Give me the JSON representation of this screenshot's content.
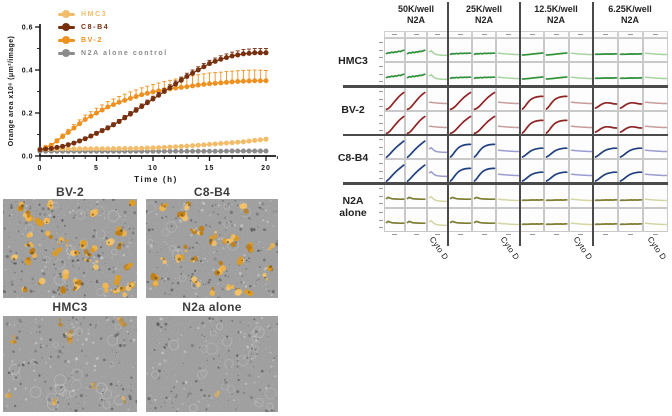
{
  "chart_data": [
    {
      "type": "line",
      "title": "",
      "xlabel": "Time (h)",
      "ylabel": "Orange area x10⁶ (μm²/image)",
      "xlim": [
        0,
        22
      ],
      "ylim": [
        0,
        0.6
      ],
      "xticks": [
        0,
        5,
        10,
        15,
        20
      ],
      "yticks": [
        0.0,
        0.2,
        0.4,
        0.6
      ],
      "grid": false,
      "legend_position": "top-left-inside",
      "x": [
        0,
        1,
        2,
        3,
        4,
        5,
        6,
        7,
        8,
        9,
        10,
        11,
        12,
        13,
        14,
        15,
        16,
        17,
        18,
        19,
        20
      ],
      "series": [
        {
          "name": "HMC3",
          "color": "#F2BD6A",
          "values": [
            0.03,
            0.032,
            0.033,
            0.033,
            0.034,
            0.034,
            0.034,
            0.035,
            0.035,
            0.036,
            0.038,
            0.04,
            0.043,
            0.046,
            0.05,
            0.054,
            0.058,
            0.062,
            0.066,
            0.072,
            0.078
          ],
          "err": [
            0.004,
            0.004,
            0.004,
            0.004,
            0.004,
            0.004,
            0.004,
            0.004,
            0.004,
            0.004,
            0.005,
            0.005,
            0.005,
            0.005,
            0.006,
            0.006,
            0.006,
            0.007,
            0.007,
            0.008,
            0.008
          ]
        },
        {
          "name": "C8-B4",
          "color": "#76300E",
          "values": [
            0.03,
            0.035,
            0.045,
            0.06,
            0.08,
            0.105,
            0.13,
            0.16,
            0.195,
            0.23,
            0.265,
            0.3,
            0.335,
            0.37,
            0.4,
            0.43,
            0.45,
            0.465,
            0.475,
            0.48,
            0.48
          ],
          "err": [
            0.004,
            0.005,
            0.006,
            0.007,
            0.008,
            0.009,
            0.01,
            0.01,
            0.012,
            0.012,
            0.013,
            0.013,
            0.014,
            0.015,
            0.015,
            0.015,
            0.016,
            0.018,
            0.02,
            0.02,
            0.02
          ]
        },
        {
          "name": "BV-2",
          "color": "#EF9120",
          "values": [
            0.03,
            0.05,
            0.09,
            0.13,
            0.17,
            0.2,
            0.228,
            0.25,
            0.268,
            0.285,
            0.298,
            0.308,
            0.316,
            0.322,
            0.33,
            0.336,
            0.34,
            0.345,
            0.348,
            0.35,
            0.35
          ],
          "err": [
            0.004,
            0.008,
            0.012,
            0.016,
            0.02,
            0.022,
            0.025,
            0.027,
            0.03,
            0.032,
            0.035,
            0.038,
            0.042,
            0.045,
            0.048,
            0.05,
            0.05,
            0.05,
            0.05,
            0.05,
            0.048
          ]
        },
        {
          "name": "N2A alone control",
          "color": "#8C8C8C",
          "values": [
            0.022,
            0.022,
            0.022,
            0.022,
            0.022,
            0.022,
            0.022,
            0.022,
            0.022,
            0.022,
            0.022,
            0.022,
            0.022,
            0.022,
            0.022,
            0.022,
            0.022,
            0.023,
            0.023,
            0.023,
            0.023
          ],
          "err": [
            0.003,
            0.003,
            0.003,
            0.003,
            0.003,
            0.003,
            0.003,
            0.003,
            0.003,
            0.003,
            0.003,
            0.003,
            0.003,
            0.003,
            0.003,
            0.003,
            0.003,
            0.003,
            0.003,
            0.003,
            0.003
          ]
        }
      ]
    },
    {
      "type": "line",
      "layout": "small-multiples",
      "columns": [
        "50K/well",
        "25K/well",
        "12.5K/well",
        "6.25K/well"
      ],
      "n2a_label": "N2A",
      "cytod_label": "Cyto D",
      "subcolumns_per_group": 3,
      "subrows_per_cell_line": 2,
      "third_subcolumn_condition": "Cyto D",
      "rows": [
        {
          "label": "HMC3",
          "color": "#2F9138",
          "light_color": "#A6D3A0",
          "groups": [
            [
              "wavyRise",
              "wavyRise",
              "bumpDecline"
            ],
            [
              "wavyFlat",
              "wavyFlat",
              "flatLight"
            ],
            [
              "flatRise",
              "flatRise",
              "flatLight"
            ],
            [
              "flat",
              "flat",
              "flatLight"
            ]
          ]
        },
        {
          "label": "BV-2",
          "color": "#8F2424",
          "light_color": "#C79C9C",
          "groups": [
            [
              "riseS",
              "riseS",
              "flatLight"
            ],
            [
              "riseS",
              "riseS",
              "flatLight"
            ],
            [
              "risePlateau",
              "risePlateau",
              "flatLight"
            ],
            [
              "hump",
              "hump",
              "flatLight"
            ]
          ]
        },
        {
          "label": "C8-B4",
          "color": "#21407F",
          "light_color": "#9C9CD2",
          "groups": [
            [
              "rise",
              "rise",
              "bumpDecline"
            ],
            [
              "risePlateau",
              "risePlateau",
              "flatLight"
            ],
            [
              "risePlateauLow",
              "risePlateauLow",
              "flatLight"
            ],
            [
              "risePlateauLow",
              "risePlateauLow",
              "flatLight"
            ]
          ]
        },
        {
          "label": "N2A alone",
          "color": "#7D7D33",
          "light_color": "#D5D5A2",
          "groups": [
            [
              "bumpFlat",
              "bumpFlat",
              "bumpDecline"
            ],
            [
              "bumpFlat",
              "bumpFlat",
              "flatLight"
            ],
            [
              "flat",
              "flat",
              "flatLight"
            ],
            [
              "flat",
              "flat",
              "flatLight"
            ]
          ]
        }
      ],
      "shapes": {
        "rise": [
          0.06,
          0.14,
          0.24,
          0.34,
          0.44,
          0.54,
          0.63,
          0.71,
          0.79,
          0.87,
          0.94
        ],
        "riseS": [
          0.05,
          0.09,
          0.17,
          0.28,
          0.4,
          0.52,
          0.63,
          0.73,
          0.82,
          0.9,
          0.97
        ],
        "risePlateau": [
          0.07,
          0.18,
          0.33,
          0.47,
          0.58,
          0.65,
          0.7,
          0.73,
          0.75,
          0.76,
          0.76
        ],
        "risePlateauLow": [
          0.07,
          0.13,
          0.22,
          0.31,
          0.39,
          0.45,
          0.49,
          0.52,
          0.54,
          0.55,
          0.55
        ],
        "hump": [
          0.12,
          0.18,
          0.26,
          0.33,
          0.38,
          0.41,
          0.41,
          0.39,
          0.37,
          0.35,
          0.34
        ],
        "wavyRise": [
          0.42,
          0.47,
          0.45,
          0.5,
          0.47,
          0.52,
          0.5,
          0.55,
          0.53,
          0.58,
          0.6
        ],
        "wavyFlat": [
          0.38,
          0.42,
          0.4,
          0.43,
          0.41,
          0.44,
          0.42,
          0.44,
          0.43,
          0.44,
          0.44
        ],
        "flatRise": [
          0.34,
          0.35,
          0.36,
          0.37,
          0.38,
          0.4,
          0.41,
          0.42,
          0.43,
          0.44,
          0.45
        ],
        "flat": [
          0.38,
          0.39,
          0.38,
          0.39,
          0.39,
          0.4,
          0.39,
          0.4,
          0.39,
          0.4,
          0.4
        ],
        "bumpDecline": [
          0.52,
          0.58,
          0.48,
          0.41,
          0.37,
          0.35,
          0.34,
          0.33,
          0.33,
          0.32,
          0.32
        ],
        "bumpFlat": [
          0.48,
          0.54,
          0.5,
          0.47,
          0.46,
          0.45,
          0.45,
          0.44,
          0.44,
          0.44,
          0.44
        ],
        "flatLight": [
          0.44,
          0.43,
          0.42,
          0.41,
          0.4,
          0.39,
          0.38,
          0.38,
          0.37,
          0.37,
          0.37
        ]
      }
    }
  ],
  "micrographs": {
    "items": [
      {
        "label": "BV-2",
        "orange_level": "high",
        "orange_blobs": 42
      },
      {
        "label": "C8-B4",
        "orange_level": "medium",
        "orange_blobs": 30
      },
      {
        "label": "HMC3",
        "orange_level": "low",
        "orange_blobs": 9
      },
      {
        "label": "N2a alone",
        "orange_level": "none",
        "orange_blobs": 1
      }
    ]
  },
  "colors": {
    "separator": "#4A4A4A",
    "micro_background": "#9C9C9C",
    "axis": "#161616"
  }
}
